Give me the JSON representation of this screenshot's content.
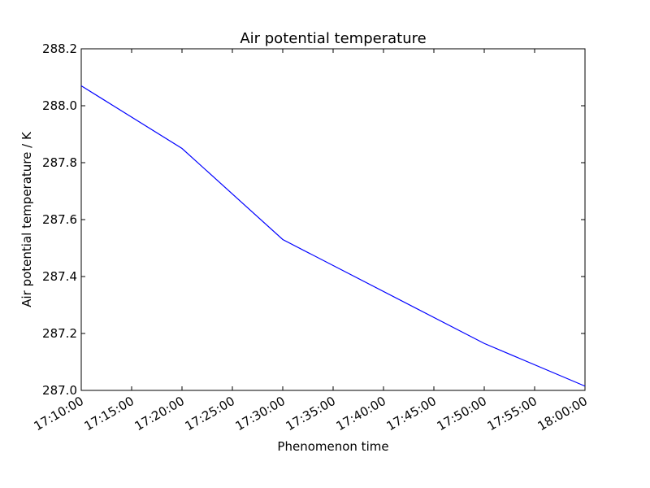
{
  "chart_data": {
    "type": "line",
    "title": "Air potential temperature",
    "xlabel": "Phenomenon time",
    "ylabel": "Air potential temperature / K",
    "x_ticks": [
      "17:10:00",
      "17:15:00",
      "17:20:00",
      "17:25:00",
      "17:30:00",
      "17:35:00",
      "17:40:00",
      "17:45:00",
      "17:50:00",
      "17:55:00",
      "18:00:00"
    ],
    "y_ticks": [
      "287.0",
      "287.2",
      "287.4",
      "287.6",
      "287.8",
      "288.0",
      "288.2"
    ],
    "xlim": [
      "17:10:00",
      "18:00:00"
    ],
    "ylim": [
      287.0,
      288.2
    ],
    "grid": false,
    "series": [
      {
        "color": "#0000ff",
        "x": [
          "17:10:00",
          "17:20:00",
          "17:30:00",
          "17:50:00",
          "18:00:00"
        ],
        "y": [
          288.07,
          287.85,
          287.53,
          287.165,
          287.015
        ]
      }
    ]
  }
}
